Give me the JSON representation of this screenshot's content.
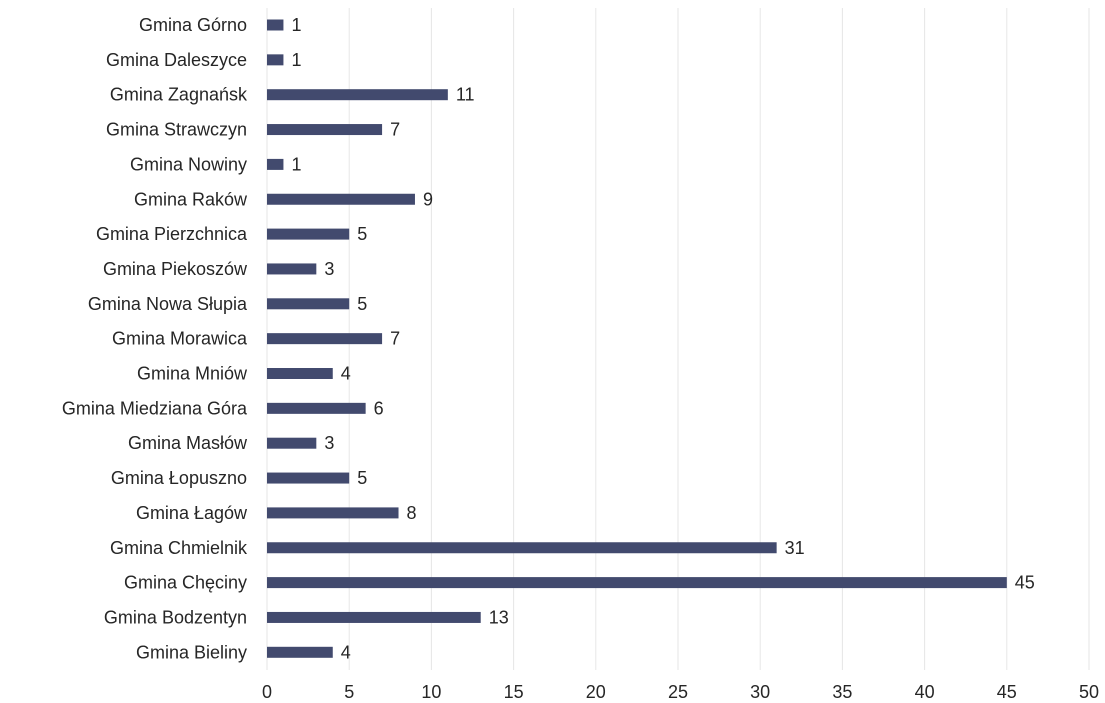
{
  "chart_data": {
    "type": "bar",
    "orientation": "horizontal",
    "title": "",
    "xlabel": "",
    "ylabel": "",
    "xlim": [
      0,
      50
    ],
    "x_ticks": [
      "0",
      "5",
      "10",
      "15",
      "20",
      "25",
      "30",
      "35",
      "40",
      "45",
      "50"
    ],
    "grid": "vertical",
    "legend": "none",
    "bar_color": "#424a6e",
    "categories": [
      "Gmina Górno",
      "Gmina Daleszyce",
      "Gmina Zagnańsk",
      "Gmina Strawczyn",
      "Gmina Nowiny",
      "Gmina Raków",
      "Gmina Pierzchnica",
      "Gmina Piekoszów",
      "Gmina Nowa Słupia",
      "Gmina Morawica",
      "Gmina Mniów",
      "Gmina Miedziana Góra",
      "Gmina Masłów",
      "Gmina Łopuszno",
      "Gmina Łagów",
      "Gmina Chmielnik",
      "Gmina Chęciny",
      "Gmina Bodzentyn",
      "Gmina Bieliny"
    ],
    "values": [
      1,
      1,
      11,
      7,
      1,
      9,
      5,
      3,
      5,
      7,
      4,
      6,
      3,
      5,
      8,
      31,
      45,
      13,
      4
    ]
  }
}
